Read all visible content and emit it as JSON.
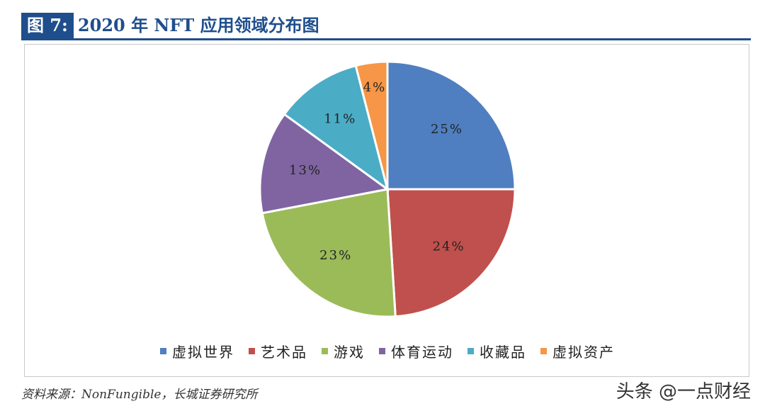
{
  "figure_label": "图 7:",
  "figure_title": "2020 年 NFT 应用领域分布图",
  "source": "资料来源：NonFungible，长城证券研究所",
  "watermark": "头条 @一点财经",
  "chart_data": {
    "type": "pie",
    "categories": [
      "虚拟世界",
      "艺术品",
      "游戏",
      "体育运动",
      "收藏品",
      "虚拟资产"
    ],
    "values": [
      25,
      24,
      23,
      13,
      11,
      4
    ],
    "labels": [
      "25%",
      "24%",
      "23%",
      "13%",
      "11%",
      "4%"
    ],
    "colors": [
      "#4f7fc0",
      "#c0504d",
      "#9bbb59",
      "#8064a2",
      "#4bacc6",
      "#f79646"
    ],
    "legend_position": "bottom"
  }
}
